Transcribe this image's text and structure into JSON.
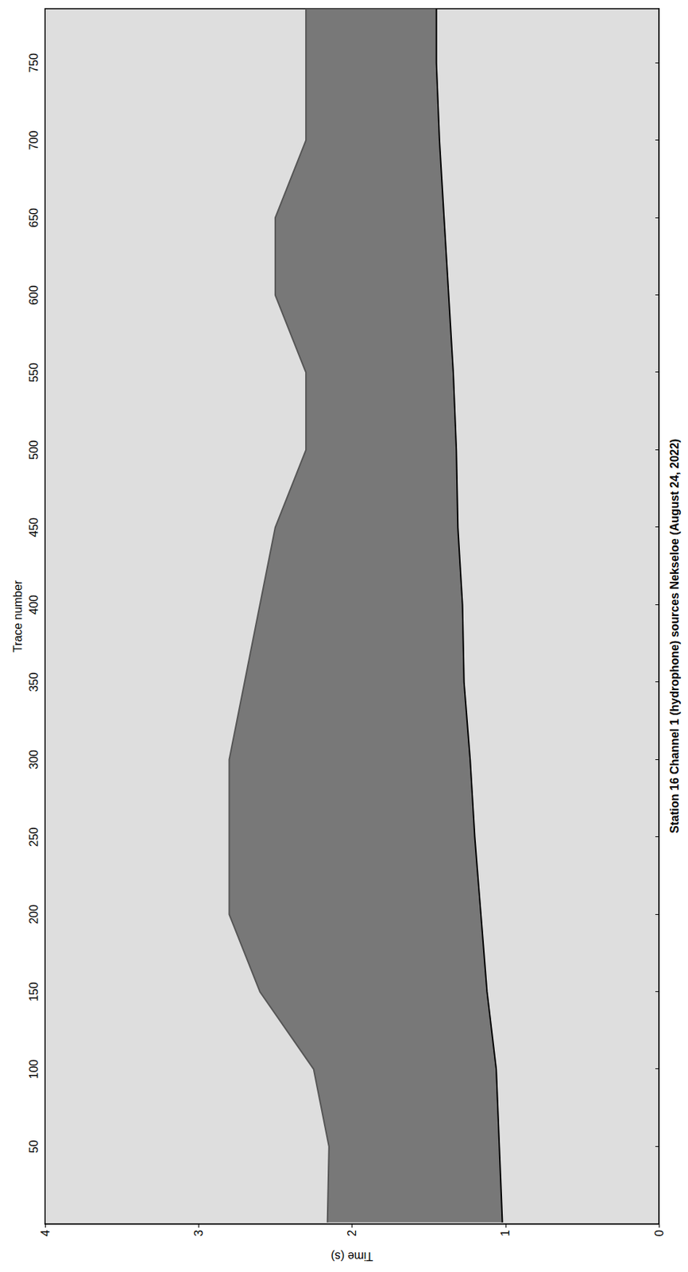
{
  "chart_data": {
    "type": "line",
    "title": "Station 16 Channel 1 (hydrophone) sources Nekseloe (August 24, 2022)",
    "x_label": "Trace number",
    "y_label": "Time (s)",
    "x": [
      1,
      50,
      100,
      150,
      200,
      250,
      300,
      350,
      400,
      450,
      500,
      550,
      600,
      650,
      700,
      750,
      785
    ],
    "series": [
      {
        "color": "#000000",
        "values": [
          1.02,
          1.04,
          1.06,
          1.12,
          1.16,
          1.2,
          1.23,
          1.27,
          1.28,
          1.31,
          1.32,
          1.34,
          1.37,
          1.4,
          1.43,
          1.45,
          1.45
        ]
      },
      {
        "color": "#555555",
        "values": [
          2.16,
          2.15,
          2.25,
          2.6,
          2.8,
          2.8,
          2.8,
          2.7,
          2.6,
          2.5,
          2.3,
          2.3,
          2.5,
          2.5,
          2.3,
          2.3,
          2.3
        ]
      }
    ],
    "xlim": [
      0,
      785
    ],
    "xticks": [
      50,
      100,
      150,
      200,
      250,
      300,
      350,
      400,
      450,
      500,
      550,
      600,
      650,
      700,
      750
    ],
    "ylim": [
      0,
      4
    ],
    "yticks": [
      0,
      1,
      2,
      3,
      4
    ],
    "grid": false
  }
}
